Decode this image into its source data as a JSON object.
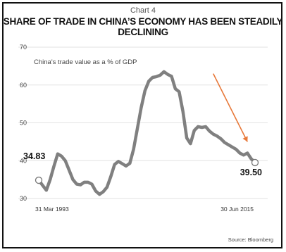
{
  "header": {
    "chart_label": "Chart 4",
    "title": "SHARE OF TRADE IN CHINA’S ECONOMY HAS BEEN STEADILY DECLINING"
  },
  "footer": {
    "source": "Source: Bloomberg"
  },
  "colors": {
    "line": "#808080",
    "arrow": "#E8793A",
    "grid": "#e2e2e2",
    "text": "#111111"
  },
  "chart_data": {
    "type": "line",
    "title": "SHARE OF TRADE IN CHINA’S ECONOMY HAS BEEN STEADILY DECLINING",
    "ylabel": "",
    "xlabel": "",
    "ylim": [
      30,
      70
    ],
    "yticks": [
      30,
      40,
      50,
      60,
      70
    ],
    "grid": true,
    "annotation": "China's trade value as a % of GDP",
    "x_tick_labels": [
      "31 Mar 1993",
      "30 Jun 2015"
    ],
    "start": {
      "label": "34.83",
      "value": 34.83
    },
    "end": {
      "label": "39.50",
      "value": 39.5
    },
    "series": [
      {
        "values": [
          34.83,
          33.5,
          32.2,
          35.0,
          38.5,
          41.8,
          41.2,
          40.0,
          37.5,
          35.0,
          33.8,
          33.6,
          34.3,
          34.3,
          33.8,
          32.0,
          31.1,
          31.8,
          33.0,
          35.8,
          39.0,
          39.8,
          39.2,
          38.6,
          39.3,
          43.0,
          48.5,
          54.0,
          58.5,
          61.0,
          62.0,
          62.2,
          62.6,
          63.5,
          62.8,
          62.3,
          59.0,
          58.2,
          53.0,
          46.0,
          44.5,
          48.0,
          49.0,
          48.8,
          49.0,
          47.8,
          47.0,
          46.5,
          45.8,
          44.8,
          44.2,
          43.6,
          43.0,
          42.0,
          41.5,
          42.0,
          40.5,
          39.5
        ]
      }
    ],
    "trend_arrow": {
      "from": 63.0,
      "to": 45.0,
      "color": "#E8793A"
    }
  }
}
